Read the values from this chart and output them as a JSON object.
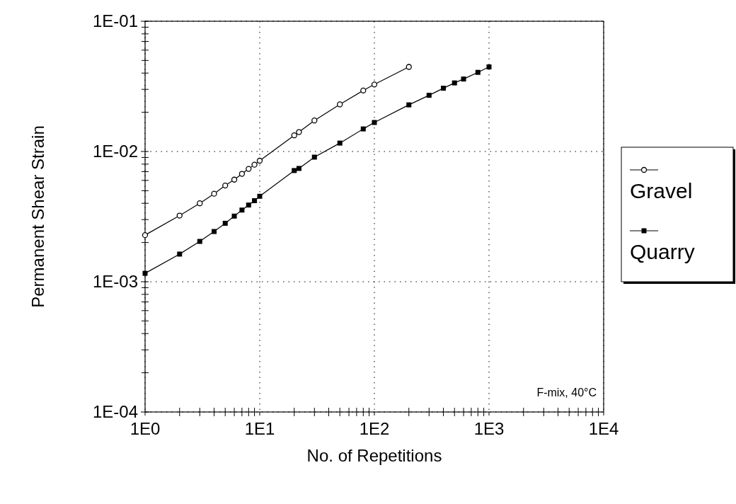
{
  "chart_data": {
    "type": "line",
    "xlabel": "No. of Repetitions",
    "ylabel": "Permanent Shear Strain",
    "log": "xy",
    "grid": true,
    "legend": "right",
    "line_style": "solid",
    "xlim": [
      1,
      10000
    ],
    "ylim": [
      0.0001,
      0.1
    ],
    "xticks": [
      {
        "value": 1,
        "label": "1E0"
      },
      {
        "value": 2,
        "label": null
      },
      {
        "value": 3,
        "label": null
      },
      {
        "value": 4,
        "label": null
      },
      {
        "value": 5,
        "label": null
      },
      {
        "value": 6,
        "label": null
      },
      {
        "value": 7,
        "label": null
      },
      {
        "value": 8,
        "label": null
      },
      {
        "value": 9,
        "label": null
      },
      {
        "value": 10,
        "label": "1E1"
      },
      {
        "value": 20,
        "label": null
      },
      {
        "value": 30,
        "label": null
      },
      {
        "value": 40,
        "label": null
      },
      {
        "value": 50,
        "label": null
      },
      {
        "value": 60,
        "label": null
      },
      {
        "value": 70,
        "label": null
      },
      {
        "value": 80,
        "label": null
      },
      {
        "value": 90,
        "label": null
      },
      {
        "value": 100,
        "label": "1E2"
      },
      {
        "value": 200,
        "label": null
      },
      {
        "value": 300,
        "label": null
      },
      {
        "value": 400,
        "label": null
      },
      {
        "value": 500,
        "label": null
      },
      {
        "value": 600,
        "label": null
      },
      {
        "value": 700,
        "label": null
      },
      {
        "value": 800,
        "label": null
      },
      {
        "value": 900,
        "label": null
      },
      {
        "value": 1000,
        "label": "1E3"
      },
      {
        "value": 2000,
        "label": null
      },
      {
        "value": 3000,
        "label": null
      },
      {
        "value": 4000,
        "label": null
      },
      {
        "value": 5000,
        "label": null
      },
      {
        "value": 6000,
        "label": null
      },
      {
        "value": 7000,
        "label": null
      },
      {
        "value": 8000,
        "label": null
      },
      {
        "value": 9000,
        "label": null
      },
      {
        "value": 10000,
        "label": "1E4"
      }
    ],
    "yticks": [
      {
        "value": 0.0001,
        "label": "1E-04"
      },
      {
        "value": 0.0002,
        "label": null
      },
      {
        "value": 0.0003,
        "label": null
      },
      {
        "value": 0.0004,
        "label": null
      },
      {
        "value": 0.0005,
        "label": null
      },
      {
        "value": 0.0006,
        "label": null
      },
      {
        "value": 0.0007,
        "label": null
      },
      {
        "value": 0.0008,
        "label": null
      },
      {
        "value": 0.0009,
        "label": null
      },
      {
        "value": 0.001,
        "label": "1E-03"
      },
      {
        "value": 0.002,
        "label": null
      },
      {
        "value": 0.003,
        "label": null
      },
      {
        "value": 0.004,
        "label": null
      },
      {
        "value": 0.005,
        "label": null
      },
      {
        "value": 0.006,
        "label": null
      },
      {
        "value": 0.007,
        "label": null
      },
      {
        "value": 0.008,
        "label": null
      },
      {
        "value": 0.009,
        "label": null
      },
      {
        "value": 0.01,
        "label": "1E-02"
      },
      {
        "value": 0.02,
        "label": null
      },
      {
        "value": 0.03,
        "label": null
      },
      {
        "value": 0.04,
        "label": null
      },
      {
        "value": 0.05,
        "label": null
      },
      {
        "value": 0.06,
        "label": null
      },
      {
        "value": 0.07,
        "label": null
      },
      {
        "value": 0.08,
        "label": null
      },
      {
        "value": 0.09,
        "label": null
      },
      {
        "value": 0.1,
        "label": "1E-01"
      }
    ],
    "series": [
      {
        "name": "Gravel",
        "color": "#000000",
        "marker": "circle",
        "x": [
          1,
          2,
          3,
          4,
          5,
          6,
          7,
          8,
          9,
          10,
          20,
          22,
          30,
          50,
          80,
          100,
          200
        ],
        "values": [
          0.00228,
          0.00322,
          0.004,
          0.00474,
          0.00548,
          0.00608,
          0.00674,
          0.00735,
          0.00792,
          0.0085,
          0.0133,
          0.0141,
          0.0173,
          0.023,
          0.0294,
          0.0327,
          0.0446
        ]
      },
      {
        "name": "Quarry",
        "color": "#000000",
        "marker": "square",
        "x": [
          1,
          2,
          3,
          4,
          5,
          6,
          7,
          8,
          9,
          10,
          20,
          22,
          30,
          50,
          80,
          100,
          200,
          300,
          400,
          500,
          600,
          800,
          1000
        ],
        "values": [
          0.00116,
          0.00163,
          0.00204,
          0.00243,
          0.00281,
          0.00319,
          0.00355,
          0.00388,
          0.00419,
          0.00453,
          0.00714,
          0.00741,
          0.00905,
          0.0116,
          0.0149,
          0.0167,
          0.0228,
          0.027,
          0.0306,
          0.0336,
          0.036,
          0.0405,
          0.0446
        ]
      }
    ],
    "annotations": [
      "F-mix, 40°C"
    ]
  }
}
